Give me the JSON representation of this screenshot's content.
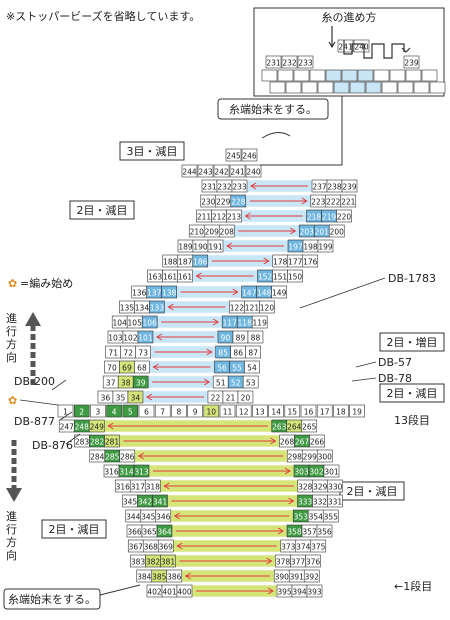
{
  "note": "※ストッパービーズを省略しています。",
  "legend_direction": {
    "title": "糸の進め方",
    "numbers": [
      "241",
      "240",
      "231",
      "232",
      "233",
      "239"
    ]
  },
  "labels": {
    "finish_top": "糸端始末をする。",
    "finish_bottom": "糸端始末をする。",
    "start_legend": "=編み始め",
    "direction_up": [
      "進",
      "行",
      "方",
      "向"
    ],
    "direction_down": [
      "進",
      "行",
      "方",
      "向"
    ],
    "row1": "←1段目",
    "row13": "13段目"
  },
  "callouts": [
    {
      "id": "dec3",
      "text": "3目・減目"
    },
    {
      "id": "dec2a",
      "text": "2目・減目"
    },
    {
      "id": "inc2",
      "text": "2目・増目"
    },
    {
      "id": "dec2b",
      "text": "2目・減目"
    },
    {
      "id": "dec2c",
      "text": "2目・減目"
    },
    {
      "id": "dec2d",
      "text": "2目・減目"
    }
  ],
  "colors_legend": [
    {
      "code": "DB-1783"
    },
    {
      "code": "DB-57"
    },
    {
      "code": "DB-78"
    },
    {
      "code": "DB-200"
    },
    {
      "code": "DB-877"
    },
    {
      "code": "DB-876"
    }
  ],
  "colors": {
    "white": "#ffffff",
    "lightblue": "#c9e6f6",
    "blue": "#6fb6e0",
    "darkblue": "#3f97cf",
    "lime": "#d6e57a",
    "green": "#9fcf57",
    "darkgreen": "#3f9b43",
    "arrow": "#e23b3b",
    "start": "#e08a1c"
  },
  "rows": [
    {
      "y": 40,
      "cells": [
        [
          241,
          "w"
        ],
        [
          240,
          "w"
        ]
      ]
    },
    {
      "y": 56,
      "cells": [
        [
          231,
          "w"
        ],
        [
          232,
          "w"
        ],
        [
          233,
          "w"
        ],
        [
          239,
          "w"
        ]
      ]
    },
    {
      "y": 149,
      "cells": [
        [
          245,
          "w"
        ],
        [
          246,
          "w"
        ]
      ]
    },
    {
      "y": 165,
      "cells": [
        [
          244,
          "w"
        ],
        [
          243,
          "w"
        ],
        [
          242,
          "w"
        ],
        [
          241,
          "w"
        ],
        [
          240,
          "w"
        ]
      ]
    },
    {
      "y": 180,
      "cells": [
        [
          231,
          "w"
        ],
        [
          232,
          "w"
        ],
        [
          233,
          "w"
        ],
        [
          237,
          "w"
        ],
        [
          238,
          "w"
        ],
        [
          239,
          "w"
        ]
      ]
    },
    {
      "y": 195,
      "cells": [
        [
          230,
          "w"
        ],
        [
          229,
          "w"
        ],
        [
          228,
          "b"
        ],
        [
          223,
          "w"
        ],
        [
          222,
          "w"
        ],
        [
          221,
          "w"
        ]
      ]
    },
    {
      "y": 210,
      "cells": [
        [
          211,
          "w"
        ],
        [
          212,
          "w"
        ],
        [
          213,
          "w"
        ],
        [
          218,
          "b"
        ],
        [
          219,
          "b"
        ],
        [
          220,
          "w"
        ]
      ]
    },
    {
      "y": 225,
      "cells": [
        [
          210,
          "w"
        ],
        [
          209,
          "w"
        ],
        [
          208,
          "w"
        ],
        [
          203,
          "b"
        ],
        [
          201,
          "b"
        ],
        [
          200,
          "w"
        ]
      ]
    },
    {
      "y": 240,
      "cells": [
        [
          189,
          "w"
        ],
        [
          190,
          "w"
        ],
        [
          191,
          "w"
        ],
        [
          197,
          "b"
        ],
        [
          198,
          "w"
        ],
        [
          199,
          "w"
        ]
      ]
    },
    {
      "y": 255,
      "cells": [
        [
          188,
          "w"
        ],
        [
          187,
          "w"
        ],
        [
          186,
          "b"
        ],
        [
          178,
          "w"
        ],
        [
          177,
          "w"
        ],
        [
          176,
          "w"
        ]
      ]
    },
    {
      "y": 270,
      "cells": [
        [
          163,
          "w"
        ],
        [
          161,
          "w"
        ],
        [
          161,
          "w"
        ],
        [
          152,
          "b"
        ],
        [
          151,
          "w"
        ],
        [
          150,
          "w"
        ]
      ]
    },
    {
      "y": 286,
      "cells": [
        [
          136,
          "w"
        ],
        [
          137,
          "b"
        ],
        [
          138,
          "b"
        ],
        [
          147,
          "b"
        ],
        [
          148,
          "b"
        ],
        [
          149,
          "w"
        ]
      ]
    },
    {
      "y": 301,
      "cells": [
        [
          135,
          "w"
        ],
        [
          134,
          "w"
        ],
        [
          133,
          "b"
        ],
        [
          122,
          "w"
        ],
        [
          121,
          "w"
        ],
        [
          120,
          "w"
        ]
      ]
    },
    {
      "y": 316,
      "cells": [
        [
          104,
          "w"
        ],
        [
          105,
          "w"
        ],
        [
          106,
          "b"
        ],
        [
          117,
          "b"
        ],
        [
          118,
          "b"
        ],
        [
          119,
          "w"
        ]
      ]
    },
    {
      "y": 331,
      "cells": [
        [
          103,
          "w"
        ],
        [
          102,
          "w"
        ],
        [
          101,
          "b"
        ],
        [
          90,
          "b"
        ],
        [
          89,
          "w"
        ],
        [
          88,
          "w"
        ]
      ]
    },
    {
      "y": 346,
      "cells": [
        [
          71,
          "w"
        ],
        [
          72,
          "w"
        ],
        [
          73,
          "w"
        ],
        [
          85,
          "b"
        ],
        [
          86,
          "w"
        ],
        [
          87,
          "w"
        ]
      ]
    },
    {
      "y": 361,
      "cells": [
        [
          70,
          "w"
        ],
        [
          69,
          "l"
        ],
        [
          68,
          "w"
        ],
        [
          56,
          "b"
        ],
        [
          55,
          "b"
        ],
        [
          54,
          "w"
        ]
      ]
    },
    {
      "y": 376,
      "cells": [
        [
          37,
          "w"
        ],
        [
          38,
          "l"
        ],
        [
          39,
          "g"
        ],
        [
          51,
          "w"
        ],
        [
          52,
          "b"
        ],
        [
          53,
          "w"
        ]
      ]
    },
    {
      "y": 391,
      "cells": [
        [
          36,
          "w"
        ],
        [
          35,
          "w"
        ],
        [
          34,
          "l"
        ],
        [
          22,
          "w"
        ],
        [
          21,
          "w"
        ],
        [
          20,
          "w"
        ]
      ]
    },
    {
      "y": 405,
      "cells": [
        [
          1,
          "w"
        ],
        [
          2,
          "g"
        ],
        [
          3,
          "w"
        ],
        [
          4,
          "g"
        ],
        [
          5,
          "g"
        ],
        [
          6,
          "w"
        ],
        [
          7,
          "w"
        ],
        [
          8,
          "w"
        ],
        [
          9,
          "w"
        ],
        [
          10,
          "l"
        ],
        [
          11,
          "w"
        ],
        [
          12,
          "w"
        ],
        [
          13,
          "w"
        ],
        [
          14,
          "w"
        ],
        [
          15,
          "w"
        ],
        [
          16,
          "w"
        ],
        [
          17,
          "w"
        ],
        [
          18,
          "w"
        ],
        [
          19,
          "w"
        ]
      ]
    },
    {
      "y": 420,
      "cells": [
        [
          247,
          "w"
        ],
        [
          248,
          "g"
        ],
        [
          249,
          "l"
        ],
        [
          263,
          "g"
        ],
        [
          264,
          "l"
        ],
        [
          265,
          "w"
        ]
      ]
    },
    {
      "y": 435,
      "cells": [
        [
          283,
          "w"
        ],
        [
          282,
          "g"
        ],
        [
          281,
          "l"
        ],
        [
          268,
          "w"
        ],
        [
          267,
          "g"
        ],
        [
          266,
          "w"
        ]
      ]
    },
    {
      "y": 450,
      "cells": [
        [
          284,
          "w"
        ],
        [
          285,
          "g"
        ],
        [
          286,
          "w"
        ],
        [
          298,
          "w"
        ],
        [
          299,
          "w"
        ],
        [
          300,
          "w"
        ]
      ]
    },
    {
      "y": 465,
      "cells": [
        [
          316,
          "w"
        ],
        [
          314,
          "g"
        ],
        [
          313,
          "g"
        ],
        [
          303,
          "g"
        ],
        [
          302,
          "g"
        ],
        [
          301,
          "w"
        ]
      ]
    },
    {
      "y": 480,
      "cells": [
        [
          316,
          "w"
        ],
        [
          317,
          "w"
        ],
        [
          318,
          "w"
        ],
        [
          328,
          "w"
        ],
        [
          329,
          "w"
        ],
        [
          330,
          "w"
        ]
      ]
    },
    {
      "y": 495,
      "cells": [
        [
          345,
          "w"
        ],
        [
          342,
          "g"
        ],
        [
          341,
          "g"
        ],
        [
          333,
          "g"
        ],
        [
          332,
          "w"
        ],
        [
          331,
          "w"
        ]
      ]
    },
    {
      "y": 510,
      "cells": [
        [
          344,
          "w"
        ],
        [
          345,
          "w"
        ],
        [
          346,
          "w"
        ],
        [
          353,
          "g"
        ],
        [
          354,
          "w"
        ],
        [
          355,
          "w"
        ]
      ]
    },
    {
      "y": 525,
      "cells": [
        [
          366,
          "w"
        ],
        [
          365,
          "w"
        ],
        [
          364,
          "g"
        ],
        [
          358,
          "g"
        ],
        [
          357,
          "w"
        ],
        [
          356,
          "w"
        ]
      ]
    },
    {
      "y": 540,
      "cells": [
        [
          367,
          "w"
        ],
        [
          368,
          "w"
        ],
        [
          369,
          "w"
        ],
        [
          373,
          "w"
        ],
        [
          374,
          "w"
        ],
        [
          375,
          "w"
        ]
      ]
    },
    {
      "y": 555,
      "cells": [
        [
          383,
          "w"
        ],
        [
          382,
          "l"
        ],
        [
          381,
          "l"
        ],
        [
          378,
          "w"
        ],
        [
          377,
          "w"
        ],
        [
          376,
          "w"
        ]
      ]
    },
    {
      "y": 570,
      "cells": [
        [
          384,
          "w"
        ],
        [
          385,
          "l"
        ],
        [
          386,
          "w"
        ],
        [
          390,
          "w"
        ],
        [
          391,
          "w"
        ],
        [
          392,
          "w"
        ]
      ]
    },
    {
      "y": 585,
      "cells": [
        [
          402,
          "w"
        ],
        [
          401,
          "w"
        ],
        [
          400,
          "w"
        ],
        [
          395,
          "w"
        ],
        [
          394,
          "w"
        ],
        [
          393,
          "w"
        ]
      ]
    }
  ]
}
